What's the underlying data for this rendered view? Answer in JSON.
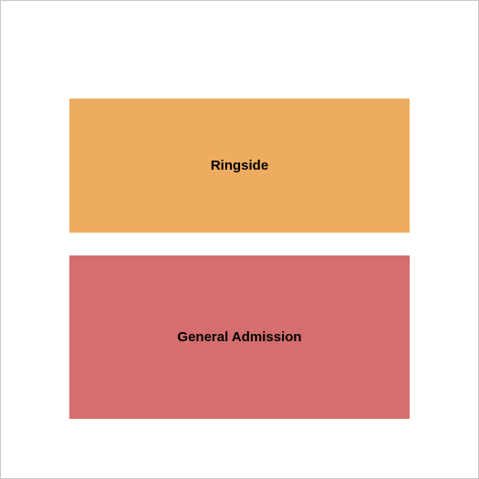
{
  "seating_chart": {
    "type": "seating-diagram",
    "background_color": "#ffffff",
    "border_color": "#c8c8c8",
    "sections": [
      {
        "label": "Ringside",
        "color": "#eeac60",
        "height": 147,
        "font_size": 15,
        "font_weight": "bold",
        "text_color": "#000000"
      },
      {
        "label": "General Admission",
        "color": "#d56e6e",
        "height": 180,
        "font_size": 15,
        "font_weight": "bold",
        "text_color": "#000000"
      }
    ],
    "gap": 25
  }
}
